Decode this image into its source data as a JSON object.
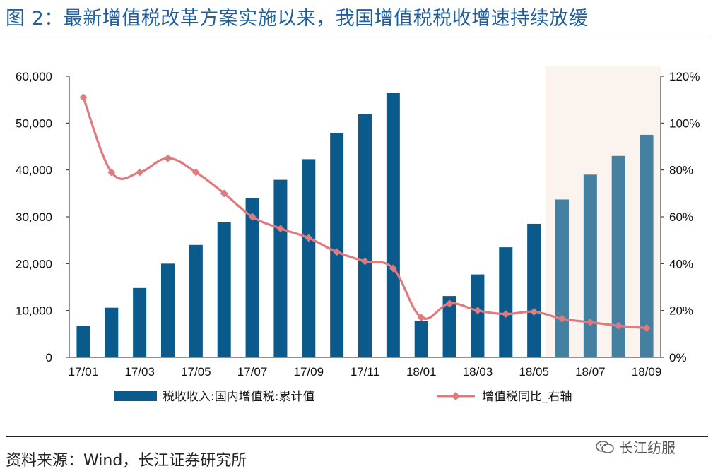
{
  "title": "图 2：最新增值税改革方案实施以来，我国增值税税收增速持续放缓",
  "source": "资料来源：Wind，长江证券研究所",
  "watermark": "长江纺服",
  "colors": {
    "bar": "#0b5a8c",
    "bar_highlight": "#44809f",
    "line": "#e07a7e",
    "shade": "#fbf3ee",
    "title": "#1f5f9e"
  },
  "chart_data": {
    "type": "bar+line",
    "x": [
      "17/01",
      "17/02",
      "17/03",
      "17/04",
      "17/05",
      "17/06",
      "17/07",
      "17/08",
      "17/09",
      "17/10",
      "17/11",
      "17/12",
      "18/01",
      "18/02",
      "18/03",
      "18/04",
      "18/05",
      "18/06",
      "18/07",
      "18/08",
      "18/09"
    ],
    "x_tick_labels": [
      "17/01",
      "17/03",
      "17/05",
      "17/07",
      "17/09",
      "17/11",
      "18/01",
      "18/03",
      "18/05",
      "18/07",
      "18/09"
    ],
    "series": [
      {
        "name": "税收收入:国内增值税:累计值",
        "type": "bar",
        "axis": "left",
        "values": [
          6700,
          10600,
          14800,
          20000,
          24000,
          28800,
          34000,
          37900,
          42300,
          47900,
          51900,
          56500,
          7800,
          13100,
          17700,
          23500,
          28500,
          33700,
          39000,
          43000,
          47500
        ]
      },
      {
        "name": "增值税同比_右轴",
        "type": "line",
        "axis": "right",
        "values": [
          111,
          79,
          79,
          85,
          79,
          70,
          60,
          55,
          51,
          45,
          41,
          38,
          17,
          23,
          20,
          18.5,
          19.5,
          16.5,
          15,
          13.5,
          12.5
        ]
      }
    ],
    "highlight_range": [
      "18/06",
      "18/09"
    ],
    "ylim_left": [
      0,
      60000
    ],
    "ylim_right": [
      0,
      120
    ],
    "yticks_left": [
      "0",
      "10,000",
      "20,000",
      "30,000",
      "40,000",
      "50,000",
      "60,000"
    ],
    "yticks_right": [
      "0%",
      "20%",
      "40%",
      "60%",
      "80%",
      "100%",
      "120%"
    ],
    "legend_position": "bottom"
  }
}
